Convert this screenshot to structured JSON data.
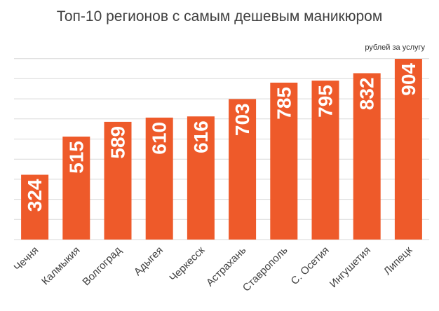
{
  "chart_data": {
    "type": "bar",
    "title": "Топ-10 регионов с самым дешевым маникюром",
    "unit_label": "рублей за услугу",
    "categories": [
      "Чечня",
      "Калмыкия",
      "Волгоград",
      "Адыгея",
      "Черкесск",
      "Астрахань",
      "Ставрополь",
      "С. Осетия",
      "Ингушетия",
      "Липецк"
    ],
    "values": [
      324,
      515,
      589,
      610,
      616,
      703,
      785,
      795,
      832,
      904
    ],
    "ylim": [
      0,
      904
    ],
    "grid": true,
    "xlabel": "",
    "ylabel": "",
    "bar_color": "#ee5a2a",
    "grid_color": "#d9d9d9",
    "label_color": "#ffffff"
  }
}
